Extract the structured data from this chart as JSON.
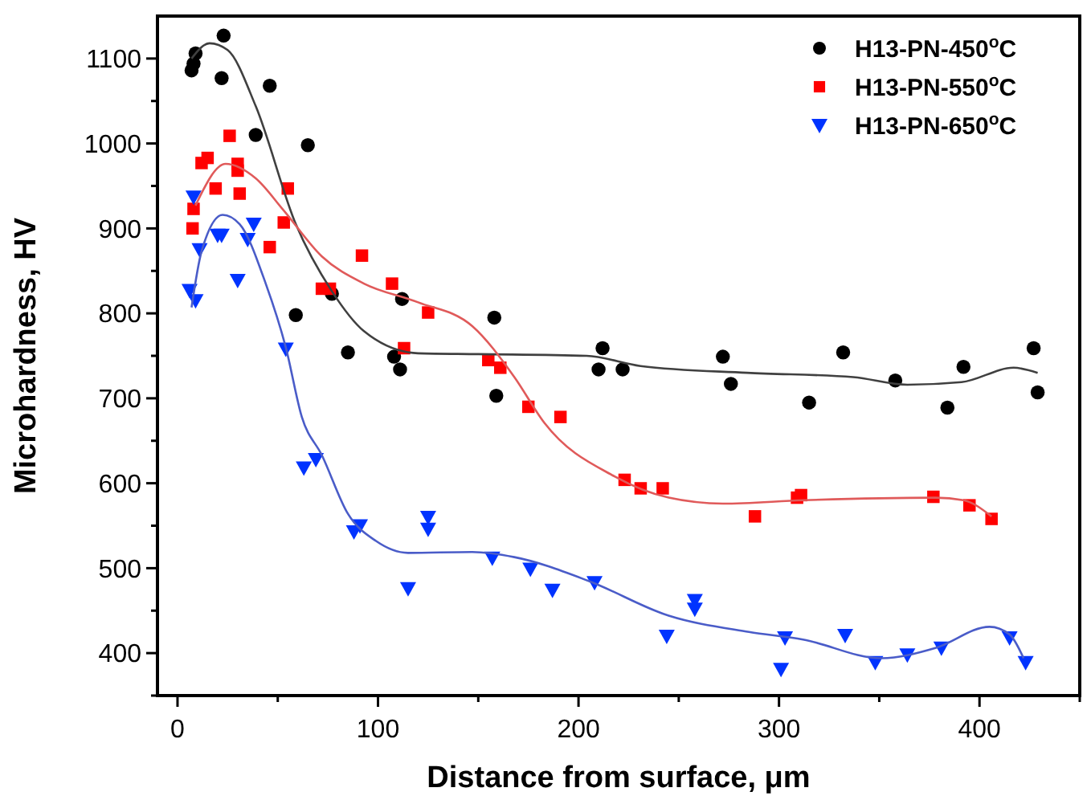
{
  "chart_data": {
    "type": "scatter",
    "xlabel": "Distance from surface, μm",
    "ylabel": "Microhardness, HV",
    "xlim": [
      -10,
      450
    ],
    "ylim": [
      350,
      1150
    ],
    "xticks": [
      0,
      {
        "value": 50,
        "label": null
      },
      100,
      {
        "value": 150,
        "label": null
      },
      200,
      {
        "value": 250,
        "label": null
      },
      300,
      {
        "value": 350,
        "label": null
      },
      400,
      {
        "value": 450,
        "label": null
      }
    ],
    "yticks": [
      {
        "value": 350,
        "label": null
      },
      400,
      {
        "value": 450,
        "label": null
      },
      500,
      {
        "value": 550,
        "label": null
      },
      600,
      {
        "value": 650,
        "label": null
      },
      700,
      {
        "value": 750,
        "label": null
      },
      800,
      {
        "value": 850,
        "label": null
      },
      900,
      {
        "value": 950,
        "label": null
      },
      1000,
      {
        "value": 1050,
        "label": null
      },
      1100
    ],
    "grid": false,
    "legend": "top right",
    "series": [
      {
        "name": "H13-PN-450$^{o}$C",
        "color": "#000000",
        "marker": "circle",
        "x": [
          7,
          8,
          9,
          23,
          22,
          46,
          39,
          65,
          59,
          77,
          85,
          108,
          111,
          112,
          158,
          159,
          212,
          210,
          222,
          272,
          276,
          315,
          332,
          358,
          384,
          392,
          427,
          429
        ],
        "values": [
          1086,
          1094,
          1106,
          1127,
          1077,
          1068,
          1010,
          998,
          798,
          823,
          754,
          749,
          734,
          817,
          795,
          703,
          759,
          734,
          734,
          749,
          717,
          695,
          754,
          721,
          689,
          737,
          759,
          707
        ]
      },
      {
        "name": "H13-PN-550$^{o}$C",
        "color": "#ff0000",
        "marker": "square",
        "x": [
          8,
          7.5,
          12,
          15,
          26,
          19,
          30,
          30,
          31,
          55,
          53,
          46,
          92,
          72,
          76,
          107,
          125,
          113,
          155,
          161,
          175,
          191,
          223,
          231,
          242,
          288,
          309,
          311,
          377,
          395,
          406
        ],
        "values": [
          923,
          900,
          977,
          983,
          1009,
          947,
          976,
          968,
          941,
          947,
          907,
          878,
          868,
          829,
          829,
          835,
          801,
          759,
          745,
          736,
          690,
          678,
          604,
          594,
          594,
          561,
          583,
          586,
          584,
          574,
          558
        ]
      },
      {
        "name": "H13-PN-650$^{o}$C",
        "color": "#0033ff",
        "marker": "triangle",
        "x": [
          8,
          6,
          9,
          11,
          20,
          22,
          35,
          38,
          30,
          54,
          63,
          69,
          88,
          91,
          115,
          125,
          125,
          157,
          176,
          187,
          208,
          244,
          258,
          258,
          301,
          303,
          333,
          348,
          364,
          381,
          415,
          423
        ],
        "values": [
          937,
          827,
          815,
          875,
          892,
          892,
          887,
          905,
          839,
          758,
          618,
          628,
          543,
          550,
          476,
          560,
          546,
          512,
          499,
          474,
          483,
          420,
          462,
          452,
          381,
          418,
          421,
          389,
          398,
          406,
          418,
          389
        ]
      },
      {
        "type": "line",
        "color": "#404040",
        "x": [
          7,
          16,
          25,
          39,
          59,
          77,
          93,
          120,
          150,
          204,
          231,
          284,
          337,
          364,
          391,
          417,
          429
        ],
        "values": [
          1100,
          1118,
          1110,
          1044,
          905,
          826,
          779,
          753,
          752,
          750,
          738,
          730,
          725,
          716,
          719,
          736,
          730
        ]
      },
      {
        "type": "line",
        "color": "#e05a5a",
        "x": [
          9,
          24,
          39,
          53,
          72,
          93,
          120,
          147,
          168,
          183,
          218,
          245,
          272,
          312,
          378,
          392,
          406
        ],
        "values": [
          927,
          976,
          959,
          921,
          867,
          835,
          813,
          785,
          725,
          671,
          608,
          583,
          576,
          580,
          583,
          580,
          561
        ]
      },
      {
        "type": "line",
        "color": "#4a5cc8",
        "x": [
          7,
          12,
          22.5,
          31,
          44,
          54,
          62,
          72,
          85,
          99,
          115,
          147,
          168,
          205,
          245,
          285,
          312,
          351,
          378,
          405,
          415,
          422
        ],
        "values": [
          807,
          873,
          916,
          905,
          835,
          760,
          678,
          633,
          564,
          532,
          518,
          519,
          513,
          485,
          444,
          425,
          416,
          394,
          406,
          431,
          422,
          394
        ]
      }
    ]
  }
}
